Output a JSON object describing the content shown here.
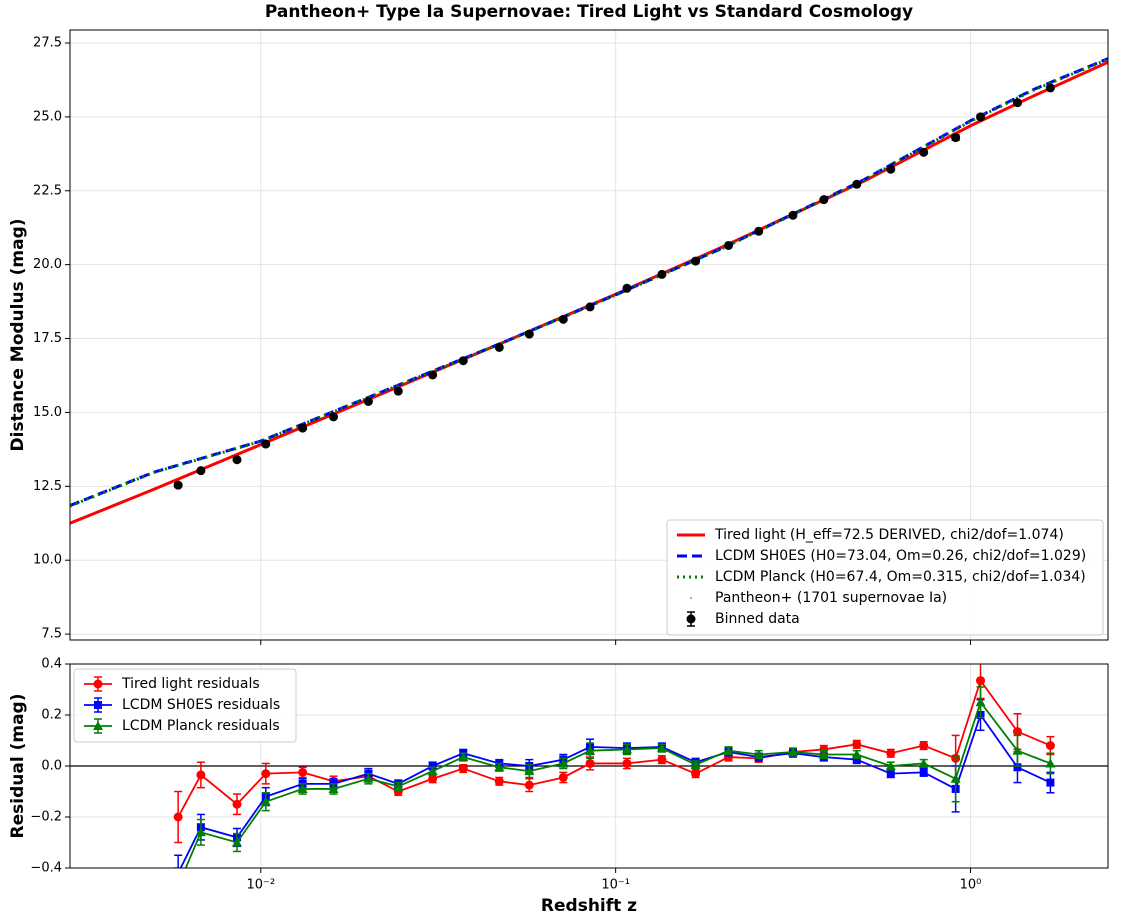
{
  "chart_data": [
    {
      "type": "line",
      "title": "Pantheon+ Type Ia Supernovae: Tired Light vs Standard Cosmology",
      "ylabel": "Distance Modulus (mag)",
      "xscale": "log",
      "xlim": [
        0.0029,
        2.44
      ],
      "xticks": [
        0.01,
        0.1,
        1
      ],
      "xticklabels": false,
      "ylim": [
        7.3,
        27.94
      ],
      "yticks": [
        7.5,
        {
          "value": 10,
          "label": "10.0"
        },
        12.5,
        {
          "value": 15,
          "label": "15.0"
        },
        17.5,
        {
          "value": 20,
          "label": "20.0"
        },
        22.5,
        {
          "value": 25,
          "label": "25.0"
        },
        27.5
      ],
      "grid": true,
      "legend": "lower right",
      "series": [
        {
          "name": "Tired light (H_eff=72.5 DERIVED, chi2/dof=1.074)",
          "color": "#ff0000",
          "linestyle": "solid",
          "x": [
            0.0029,
            0.005,
            0.01,
            0.02,
            0.05,
            0.1,
            0.2,
            0.5,
            1.0,
            1.5,
            2.44
          ],
          "values": [
            11.25,
            12.4,
            13.91,
            15.43,
            17.45,
            19.0,
            20.6,
            22.82,
            24.7,
            25.7,
            26.85
          ]
        },
        {
          "name": "LCDM SH0ES (H0=73.04, Om=0.26, chi2/dof=1.029)",
          "color": "#0000ff",
          "linestyle": "dashed",
          "x": [
            0.0029,
            0.005,
            0.01,
            0.02,
            0.05,
            0.1,
            0.2,
            0.5,
            1.0,
            1.5,
            2.44
          ],
          "values": [
            11.85,
            12.98,
            14.03,
            15.5,
            17.45,
            18.98,
            20.56,
            22.87,
            24.87,
            25.92,
            26.97
          ]
        },
        {
          "name": "LCDM Planck (H0=67.4, Om=0.315, chi2/dof=1.034)",
          "color": "#008000",
          "linestyle": "dotted",
          "x": [
            0.0029,
            0.005,
            0.01,
            0.02,
            0.05,
            0.1,
            0.2,
            0.5,
            1.0,
            1.5,
            2.44
          ],
          "values": [
            11.83,
            12.97,
            14.02,
            15.49,
            17.44,
            18.97,
            20.55,
            22.85,
            24.85,
            25.9,
            26.95
          ]
        },
        {
          "name": "Pantheon+ (1701 supernovae Ia)",
          "color": "#b0b0b0",
          "marker": "dot",
          "x": [],
          "values": []
        },
        {
          "name": "Binned data",
          "color": "#000000",
          "marker": "o",
          "x": [
            0.00585,
            0.00678,
            0.00857,
            0.01033,
            0.01312,
            0.01603,
            0.0201,
            0.0244,
            0.0305,
            0.0372,
            0.047,
            0.0571,
            0.0712,
            0.0847,
            0.1076,
            0.135,
            0.168,
            0.208,
            0.253,
            0.316,
            0.386,
            0.478,
            0.596,
            0.738,
            0.908,
            1.067,
            1.356,
            1.679
          ],
          "values": [
            12.54,
            13.03,
            13.4,
            13.93,
            14.47,
            14.85,
            15.37,
            15.72,
            16.27,
            16.75,
            17.2,
            17.65,
            18.15,
            18.57,
            19.2,
            19.67,
            20.12,
            20.65,
            21.13,
            21.67,
            22.2,
            22.72,
            23.23,
            23.8,
            24.3,
            25.0,
            25.48,
            25.98
          ],
          "errors": [
            0.06,
            0.05,
            0.05,
            0.05,
            0.04,
            0.04,
            0.03,
            0.03,
            0.03,
            0.03,
            0.03,
            0.03,
            0.03,
            0.03,
            0.03,
            0.03,
            0.03,
            0.03,
            0.03,
            0.03,
            0.03,
            0.03,
            0.03,
            0.03,
            0.09,
            0.07,
            0.07,
            0.04
          ]
        }
      ]
    },
    {
      "type": "line",
      "ylabel": "Residual (mag)",
      "xlabel": "Redshift z",
      "xscale": "log",
      "xlim": [
        0.0029,
        2.44
      ],
      "xticks": [
        {
          "value": 0.01,
          "label": "10⁻²"
        },
        {
          "value": 0.1,
          "label": "10⁻¹"
        },
        {
          "value": 1,
          "label": "10⁰"
        }
      ],
      "ylim": [
        -0.4,
        0.4
      ],
      "yticks": [
        {
          "value": -0.4,
          "label": "−0.4"
        },
        {
          "value": -0.2,
          "label": "−0.2"
        },
        {
          "value": 0,
          "label": "0.0"
        },
        0.2,
        0.4
      ],
      "reference_line": 0,
      "grid": true,
      "legend": "upper left",
      "series": [
        {
          "name": "Tired light residuals",
          "color": "#ff0000",
          "linestyle": "solid",
          "marker": "o",
          "x": [
            0.00585,
            0.00678,
            0.00857,
            0.01033,
            0.01312,
            0.01603,
            0.0201,
            0.0244,
            0.0305,
            0.0372,
            0.047,
            0.0571,
            0.0712,
            0.0847,
            0.1076,
            0.135,
            0.168,
            0.208,
            0.253,
            0.316,
            0.386,
            0.478,
            0.596,
            0.738,
            0.908,
            1.067,
            1.356,
            1.679
          ],
          "values": [
            -0.2,
            -0.035,
            -0.15,
            -0.03,
            -0.025,
            -0.06,
            -0.04,
            -0.1,
            -0.05,
            -0.01,
            -0.06,
            -0.075,
            -0.045,
            0.01,
            0.01,
            0.025,
            -0.03,
            0.035,
            0.03,
            0.055,
            0.065,
            0.085,
            0.05,
            0.08,
            0.03,
            0.335,
            0.135,
            0.08
          ],
          "errors": [
            0.1,
            0.05,
            0.04,
            0.04,
            0.02,
            0.02,
            0.02,
            0.015,
            0.015,
            0.015,
            0.015,
            0.025,
            0.02,
            0.025,
            0.02,
            0.015,
            0.015,
            0.015,
            0.015,
            0.015,
            0.015,
            0.015,
            0.015,
            0.015,
            0.09,
            0.07,
            0.07,
            0.035
          ]
        },
        {
          "name": "LCDM SH0ES residuals",
          "color": "#0000ff",
          "linestyle": "solid",
          "marker": "s",
          "x": [
            0.00585,
            0.00678,
            0.00857,
            0.01033,
            0.01312,
            0.01603,
            0.0201,
            0.0244,
            0.0305,
            0.0372,
            0.047,
            0.0571,
            0.0712,
            0.0847,
            0.1076,
            0.135,
            0.168,
            0.208,
            0.253,
            0.316,
            0.386,
            0.478,
            0.596,
            0.738,
            0.908,
            1.067,
            1.356,
            1.679
          ],
          "values": [
            -0.42,
            -0.24,
            -0.28,
            -0.12,
            -0.07,
            -0.07,
            -0.03,
            -0.07,
            0.0,
            0.05,
            0.01,
            0.0,
            0.025,
            0.075,
            0.07,
            0.075,
            0.015,
            0.055,
            0.035,
            0.05,
            0.035,
            0.025,
            -0.03,
            -0.025,
            -0.09,
            0.2,
            -0.005,
            -0.065
          ],
          "errors": [
            0.07,
            0.05,
            0.035,
            0.035,
            0.02,
            0.02,
            0.02,
            0.015,
            0.015,
            0.015,
            0.015,
            0.025,
            0.02,
            0.03,
            0.02,
            0.015,
            0.015,
            0.015,
            0.015,
            0.015,
            0.015,
            0.015,
            0.015,
            0.015,
            0.09,
            0.06,
            0.06,
            0.04
          ]
        },
        {
          "name": "LCDM Planck residuals",
          "color": "#008000",
          "linestyle": "solid",
          "marker": "^",
          "x": [
            0.00585,
            0.00678,
            0.00857,
            0.01033,
            0.01312,
            0.01603,
            0.0201,
            0.0244,
            0.0305,
            0.0372,
            0.047,
            0.0571,
            0.0712,
            0.0847,
            0.1076,
            0.135,
            0.168,
            0.208,
            0.253,
            0.316,
            0.386,
            0.478,
            0.596,
            0.738,
            0.908,
            1.067,
            1.356,
            1.679
          ],
          "values": [
            -0.47,
            -0.26,
            -0.3,
            -0.14,
            -0.09,
            -0.09,
            -0.05,
            -0.08,
            -0.02,
            0.035,
            -0.005,
            -0.02,
            0.01,
            0.06,
            0.065,
            0.07,
            0.005,
            0.06,
            0.045,
            0.055,
            0.045,
            0.045,
            0.0,
            0.01,
            -0.05,
            0.25,
            0.06,
            0.01
          ],
          "errors": [
            0.07,
            0.05,
            0.035,
            0.035,
            0.02,
            0.02,
            0.02,
            0.015,
            0.015,
            0.015,
            0.015,
            0.025,
            0.02,
            0.03,
            0.02,
            0.015,
            0.015,
            0.015,
            0.015,
            0.015,
            0.015,
            0.015,
            0.015,
            0.015,
            0.09,
            0.06,
            0.06,
            0.04
          ]
        }
      ]
    }
  ]
}
